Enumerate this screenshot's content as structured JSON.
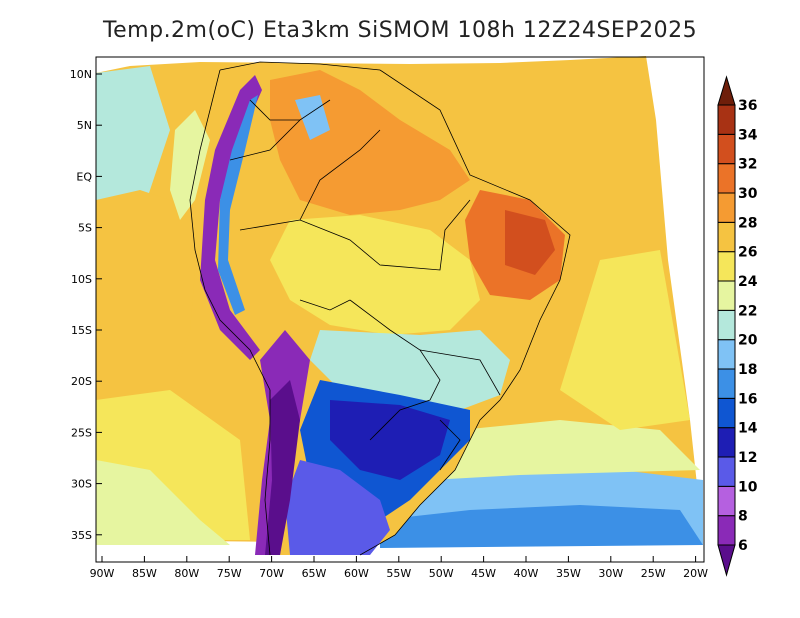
{
  "title": "Temp.2m(oC) Eta3km SiSMOM 108h 12Z24SEP2025",
  "axes": {
    "lat_ticks": [
      "10N",
      "5N",
      "EQ",
      "5S",
      "10S",
      "15S",
      "20S",
      "25S",
      "30S",
      "35S"
    ],
    "lon_ticks": [
      "90W",
      "85W",
      "80W",
      "75W",
      "70W",
      "65W",
      "60W",
      "55W",
      "50W",
      "45W",
      "40W",
      "35W",
      "30W",
      "25W",
      "20W"
    ]
  },
  "colorbar": {
    "levels": [
      "6",
      "8",
      "10",
      "12",
      "14",
      "16",
      "18",
      "20",
      "22",
      "24",
      "26",
      "28",
      "30",
      "32",
      "34",
      "36"
    ],
    "colors": [
      "#5a0e8c",
      "#8a2ab7",
      "#b560e0",
      "#5a5ae8",
      "#1e1eb4",
      "#0f56d2",
      "#3c90e6",
      "#7fc2f5",
      "#b4e8dc",
      "#e6f5a0",
      "#f5e65a",
      "#f5c341",
      "#f59b32",
      "#eb7328",
      "#d24f1e",
      "#a83214",
      "#6e1e0a"
    ]
  }
}
